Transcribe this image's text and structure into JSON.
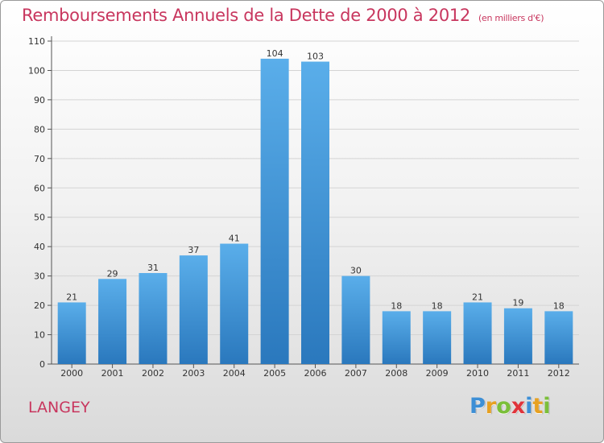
{
  "title": "Remboursements Annuels de la Dette de 2000 à 2012",
  "subtitle": "(en milliers d'€)",
  "commune": "LANGEY",
  "logo": {
    "letters": [
      {
        "ch": "P",
        "color": "#3d8fd6"
      },
      {
        "ch": "r",
        "color": "#e7a122"
      },
      {
        "ch": "o",
        "color": "#7bbf3a"
      },
      {
        "ch": "x",
        "color": "#e0343b"
      },
      {
        "ch": "i",
        "color": "#3d8fd6"
      },
      {
        "ch": "t",
        "color": "#e7a122"
      },
      {
        "ch": "i",
        "color": "#7bbf3a"
      }
    ]
  },
  "chart_data": {
    "type": "bar",
    "categories": [
      "2000",
      "2001",
      "2002",
      "2003",
      "2004",
      "2005",
      "2006",
      "2007",
      "2008",
      "2009",
      "2010",
      "2011",
      "2012"
    ],
    "values": [
      21,
      29,
      31,
      37,
      41,
      104,
      103,
      30,
      18,
      18,
      21,
      19,
      18
    ],
    "ylim": [
      0,
      110
    ],
    "yticks": [
      0,
      10,
      20,
      30,
      40,
      50,
      60,
      70,
      80,
      90,
      100,
      110
    ],
    "grid": true,
    "bar_color": "#3a8fd8"
  }
}
